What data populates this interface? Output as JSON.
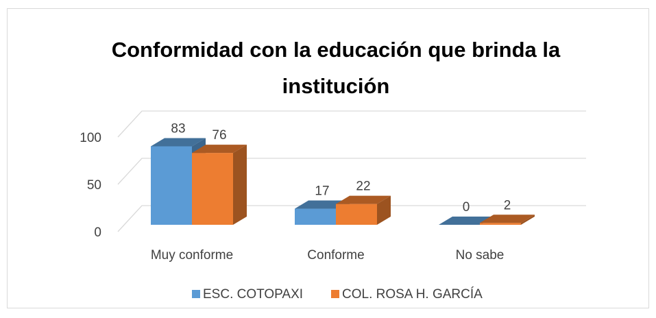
{
  "chart_data": {
    "type": "bar3d",
    "title": "Conformidad con la educación que brinda la institución",
    "categories": [
      "Muy conforme",
      "Conforme",
      "No sabe"
    ],
    "series": [
      {
        "name": "ESC. COTOPAXI",
        "color": "#5b9bd5",
        "values": [
          83,
          17,
          0
        ]
      },
      {
        "name": "COL. ROSA H. GARCÍA",
        "color": "#ed7d31",
        "values": [
          76,
          22,
          2
        ]
      }
    ],
    "ylim": [
      0,
      100
    ],
    "yticks": [
      0,
      50,
      100
    ],
    "grid": true,
    "legend": "bottom"
  }
}
